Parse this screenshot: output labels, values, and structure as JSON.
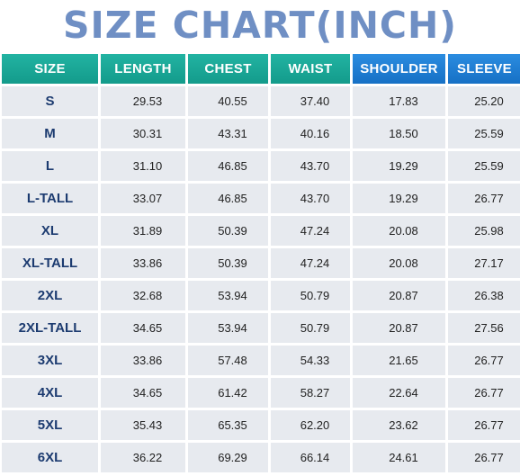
{
  "title": "SIZE CHART(INCH)",
  "colors": {
    "title": "#6f8fc4",
    "header_teal": "#139b8b",
    "header_blue": "#1670c5",
    "cell_bg": "#e7eaef",
    "size_text": "#1c3b70"
  },
  "columns": [
    "SIZE",
    "LENGTH",
    "CHEST",
    "WAIST",
    "SHOULDER",
    "SLEEVE"
  ],
  "rows": [
    [
      "S",
      "29.53",
      "40.55",
      "37.40",
      "17.83",
      "25.20"
    ],
    [
      "M",
      "30.31",
      "43.31",
      "40.16",
      "18.50",
      "25.59"
    ],
    [
      "L",
      "31.10",
      "46.85",
      "43.70",
      "19.29",
      "25.59"
    ],
    [
      "L-TALL",
      "33.07",
      "46.85",
      "43.70",
      "19.29",
      "26.77"
    ],
    [
      "XL",
      "31.89",
      "50.39",
      "47.24",
      "20.08",
      "25.98"
    ],
    [
      "XL-TALL",
      "33.86",
      "50.39",
      "47.24",
      "20.08",
      "27.17"
    ],
    [
      "2XL",
      "32.68",
      "53.94",
      "50.79",
      "20.87",
      "26.38"
    ],
    [
      "2XL-TALL",
      "34.65",
      "53.94",
      "50.79",
      "20.87",
      "27.56"
    ],
    [
      "3XL",
      "33.86",
      "57.48",
      "54.33",
      "21.65",
      "26.77"
    ],
    [
      "4XL",
      "34.65",
      "61.42",
      "58.27",
      "22.64",
      "26.77"
    ],
    [
      "5XL",
      "35.43",
      "65.35",
      "62.20",
      "23.62",
      "26.77"
    ],
    [
      "6XL",
      "36.22",
      "69.29",
      "66.14",
      "24.61",
      "26.77"
    ]
  ]
}
